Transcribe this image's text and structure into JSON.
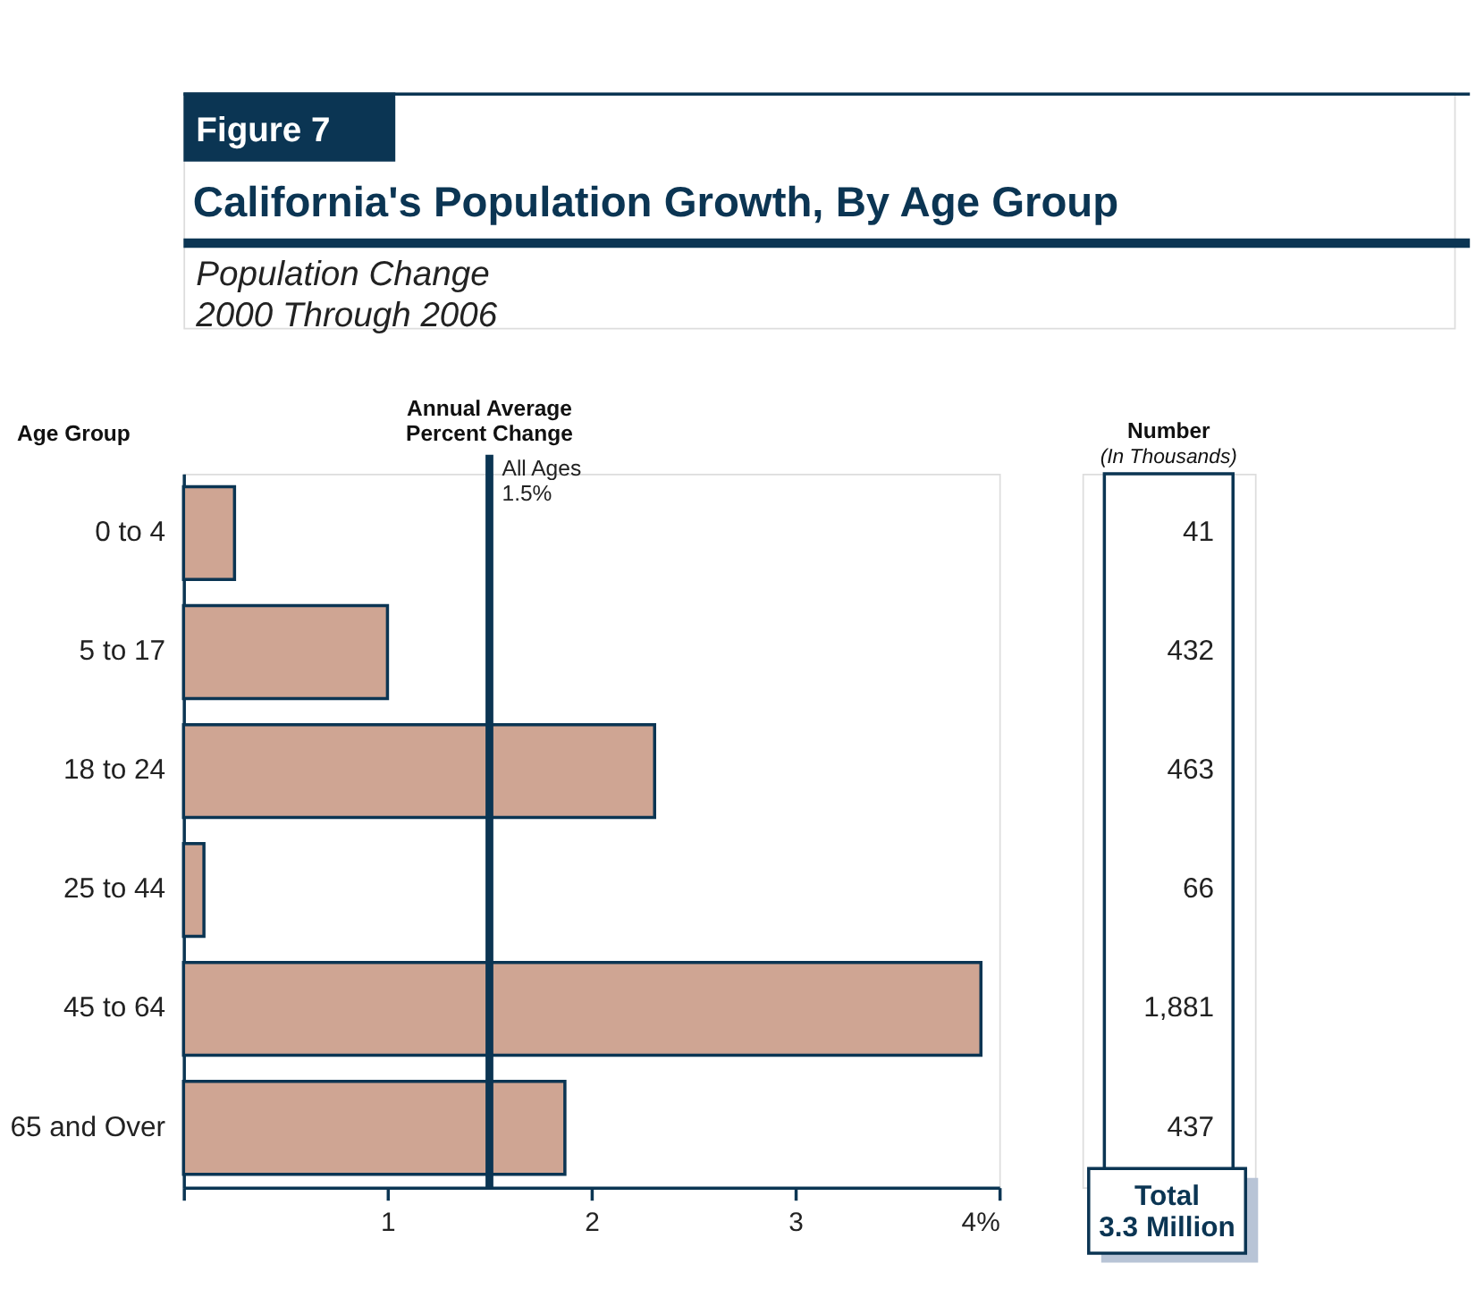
{
  "chart_data": [
    {
      "type": "bar",
      "orientation": "horizontal",
      "title": "California's Population Growth, By Age Group",
      "subtitle": "Population Change\n2000 Through 2006",
      "annotations": [
        "Figure 7"
      ],
      "ylabel": "Age Group",
      "xlabel": "Annual Average\nPercent Change",
      "categories": [
        "0 to 4",
        "5 to 17",
        "18 to 24",
        "25 to 44",
        "45 to 64",
        "65 and Over"
      ],
      "values": [
        0.25,
        1.0,
        2.31,
        0.1,
        3.91,
        1.87
      ],
      "color": "#cfa593",
      "xlim": [
        0,
        4
      ],
      "xticks": [
        {
          "value": 0,
          "label": null
        },
        1,
        2,
        3,
        {
          "value": 4,
          "label": "4%"
        }
      ],
      "ref_lines": [
        {
          "axis": "x",
          "value": 1.5,
          "label": "All Ages\n1.5%",
          "color": "#0b3553"
        }
      ],
      "grid": false
    },
    {
      "type": "other",
      "title": "Number",
      "subtitle": "(In Thousands)",
      "values": [
        41,
        432,
        463,
        66,
        1881,
        437
      ],
      "value_labels": [
        "41",
        "432",
        "463",
        "66",
        "1,881",
        "437"
      ],
      "annotations": [
        "Total\n3.3 Million"
      ]
    }
  ]
}
